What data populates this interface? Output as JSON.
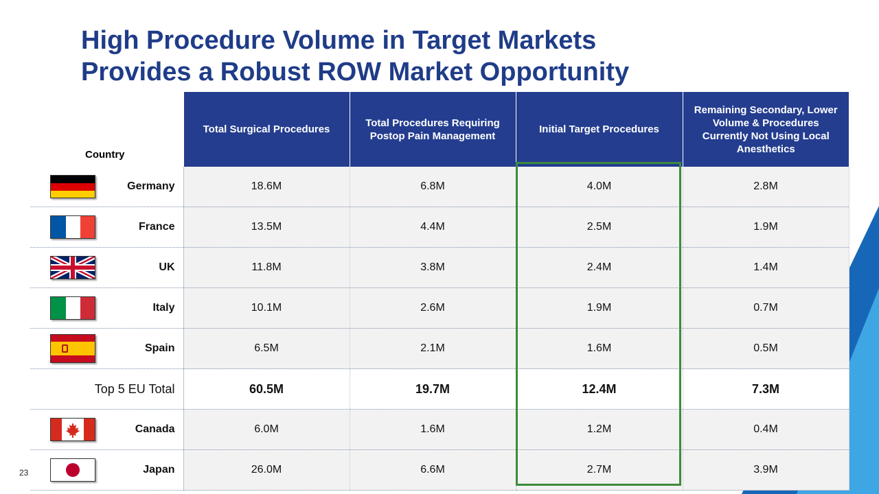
{
  "slide": {
    "title_line1": "High Procedure Volume in Target Markets",
    "title_line2": "Provides a Robust ROW Market Opportunity",
    "page_number": "23"
  },
  "table": {
    "headers": [
      "Country",
      "Total  Surgical Procedures",
      "Total Procedures Requiring Postop Pain Management",
      "Initial  Target Procedures",
      "Remaining Secondary, Lower Volume & Procedures Currently Not Using Local Anesthetics"
    ],
    "rows": [
      {
        "country": "Germany",
        "flag": "germany-flag",
        "values": [
          "18.6M",
          "6.8M",
          "4.0M",
          "2.8M"
        ]
      },
      {
        "country": "France",
        "flag": "france-flag",
        "values": [
          "13.5M",
          "4.4M",
          "2.5M",
          "1.9M"
        ]
      },
      {
        "country": "UK",
        "flag": "uk-flag",
        "values": [
          "11.8M",
          "3.8M",
          "2.4M",
          "1.4M"
        ]
      },
      {
        "country": "Italy",
        "flag": "italy-flag",
        "values": [
          "10.1M",
          "2.6M",
          "1.9M",
          "0.7M"
        ]
      },
      {
        "country": "Spain",
        "flag": "spain-flag",
        "values": [
          "6.5M",
          "2.1M",
          "1.6M",
          "0.5M"
        ]
      },
      {
        "country": "Top 5 EU Total",
        "flag": "",
        "values": [
          "60.5M",
          "19.7M",
          "12.4M",
          "7.3M"
        ]
      },
      {
        "country": "Canada",
        "flag": "canada-flag",
        "values": [
          "6.0M",
          "1.6M",
          "1.2M",
          "0.4M"
        ]
      },
      {
        "country": "Japan",
        "flag": "japan-flag",
        "values": [
          "26.0M",
          "6.6M",
          "2.7M",
          "3.9M"
        ]
      }
    ]
  },
  "colors": {
    "title": "#1f3c88",
    "header_bg": "#243d8f",
    "highlight_border": "#3d8b3d",
    "accent_blue_dark": "#1767b8",
    "accent_blue_light": "#3fa6e4"
  }
}
